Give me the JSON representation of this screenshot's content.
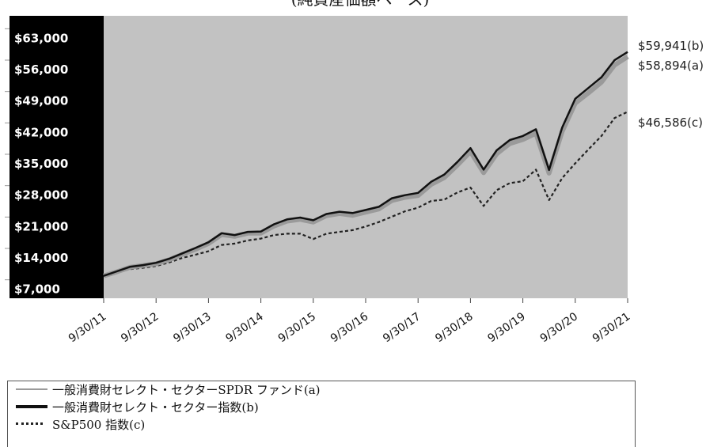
{
  "chart_data": {
    "type": "line",
    "title": "(純資産価額ベース)",
    "x": [
      "9/30/11",
      "9/30/12",
      "9/30/13",
      "9/30/14",
      "9/30/15",
      "9/30/16",
      "9/30/17",
      "9/30/18",
      "9/30/19",
      "9/30/20",
      "9/30/21"
    ],
    "ylim": [
      5000,
      68000
    ],
    "yticks": [
      7000,
      14000,
      21000,
      28000,
      35000,
      42000,
      49000,
      56000,
      63000
    ],
    "ytick_labels": [
      "$7,000",
      "$14,000",
      "$21,000",
      "$28,000",
      "$35,000",
      "$42,000",
      "$49,000",
      "$56,000",
      "$63,000"
    ],
    "grid": false,
    "legend_position": "bottom",
    "series": [
      {
        "name": "一般消費財セレクト・セクターSPDR ファンド(a)",
        "color": "#9a9a9a",
        "end_label": "$58,894(a)",
        "values": [
          [
            0,
            10000
          ],
          [
            0.25,
            10900
          ],
          [
            0.5,
            11900
          ],
          [
            0.75,
            12300
          ],
          [
            1,
            12700
          ],
          [
            1.25,
            13600
          ],
          [
            1.5,
            14800
          ],
          [
            1.75,
            15900
          ],
          [
            2,
            17200
          ],
          [
            2.25,
            19200
          ],
          [
            2.5,
            18800
          ],
          [
            2.75,
            19500
          ],
          [
            3,
            19500
          ],
          [
            3.25,
            21100
          ],
          [
            3.5,
            22200
          ],
          [
            3.75,
            22600
          ],
          [
            4,
            22000
          ],
          [
            4.25,
            23400
          ],
          [
            4.5,
            23900
          ],
          [
            4.75,
            23500
          ],
          [
            5,
            24200
          ],
          [
            5.25,
            24900
          ],
          [
            5.5,
            26800
          ],
          [
            5.75,
            27500
          ],
          [
            6,
            27900
          ],
          [
            6.25,
            30400
          ],
          [
            6.5,
            31900
          ],
          [
            6.75,
            34700
          ],
          [
            7,
            37700
          ],
          [
            7.25,
            33000
          ],
          [
            7.5,
            37200
          ],
          [
            7.75,
            39500
          ],
          [
            8,
            40400
          ],
          [
            8.25,
            41800
          ],
          [
            8.5,
            32900
          ],
          [
            8.75,
            42200
          ],
          [
            9,
            48500
          ],
          [
            9.25,
            50800
          ],
          [
            9.5,
            53200
          ],
          [
            9.75,
            57000
          ],
          [
            10,
            58900
          ]
        ]
      },
      {
        "name": "一般消費財セレクト・セクター指数(b)",
        "color": "#111111",
        "end_label": "$59,941(b)",
        "values": [
          [
            0,
            10000
          ],
          [
            0.25,
            11000
          ],
          [
            0.5,
            12000
          ],
          [
            0.75,
            12400
          ],
          [
            1,
            12900
          ],
          [
            1.25,
            13800
          ],
          [
            1.5,
            15000
          ],
          [
            1.75,
            16200
          ],
          [
            2,
            17500
          ],
          [
            2.25,
            19500
          ],
          [
            2.5,
            19100
          ],
          [
            2.75,
            19800
          ],
          [
            3,
            19900
          ],
          [
            3.25,
            21500
          ],
          [
            3.5,
            22600
          ],
          [
            3.75,
            23000
          ],
          [
            4,
            22400
          ],
          [
            4.25,
            23800
          ],
          [
            4.5,
            24300
          ],
          [
            4.75,
            24000
          ],
          [
            5,
            24700
          ],
          [
            5.25,
            25400
          ],
          [
            5.5,
            27300
          ],
          [
            5.75,
            28000
          ],
          [
            6,
            28500
          ],
          [
            6.25,
            31000
          ],
          [
            6.5,
            32600
          ],
          [
            6.75,
            35400
          ],
          [
            7,
            38500
          ],
          [
            7.25,
            33700
          ],
          [
            7.5,
            38000
          ],
          [
            7.75,
            40300
          ],
          [
            8,
            41200
          ],
          [
            8.25,
            42700
          ],
          [
            8.5,
            33600
          ],
          [
            8.75,
            43100
          ],
          [
            9,
            49500
          ],
          [
            9.25,
            51900
          ],
          [
            9.5,
            54300
          ],
          [
            9.75,
            58100
          ],
          [
            10,
            59941
          ]
        ]
      },
      {
        "name": "S&P500 指数(c)",
        "color": "#222222",
        "dashed": true,
        "end_label": "$46,586(c)",
        "values": [
          [
            0,
            10000
          ],
          [
            0.25,
            10800
          ],
          [
            0.5,
            11500
          ],
          [
            0.75,
            11800
          ],
          [
            1,
            12200
          ],
          [
            1.25,
            13000
          ],
          [
            1.5,
            14000
          ],
          [
            1.75,
            14700
          ],
          [
            2,
            15500
          ],
          [
            2.25,
            16900
          ],
          [
            2.5,
            17200
          ],
          [
            2.75,
            17900
          ],
          [
            3,
            18300
          ],
          [
            3.25,
            19100
          ],
          [
            3.5,
            19400
          ],
          [
            3.75,
            19400
          ],
          [
            4,
            18200
          ],
          [
            4.25,
            19400
          ],
          [
            4.5,
            19800
          ],
          [
            4.75,
            20200
          ],
          [
            5,
            21000
          ],
          [
            5.25,
            22000
          ],
          [
            5.5,
            23200
          ],
          [
            5.75,
            24400
          ],
          [
            6,
            25200
          ],
          [
            6.25,
            26700
          ],
          [
            6.5,
            27000
          ],
          [
            6.75,
            28600
          ],
          [
            7,
            29700
          ],
          [
            7.25,
            25600
          ],
          [
            7.5,
            29100
          ],
          [
            7.75,
            30700
          ],
          [
            8,
            31100
          ],
          [
            8.25,
            33700
          ],
          [
            8.5,
            26900
          ],
          [
            8.75,
            31800
          ],
          [
            9,
            35100
          ],
          [
            9.25,
            38200
          ],
          [
            9.5,
            41200
          ],
          [
            9.75,
            45200
          ],
          [
            10,
            46586
          ]
        ]
      }
    ]
  }
}
